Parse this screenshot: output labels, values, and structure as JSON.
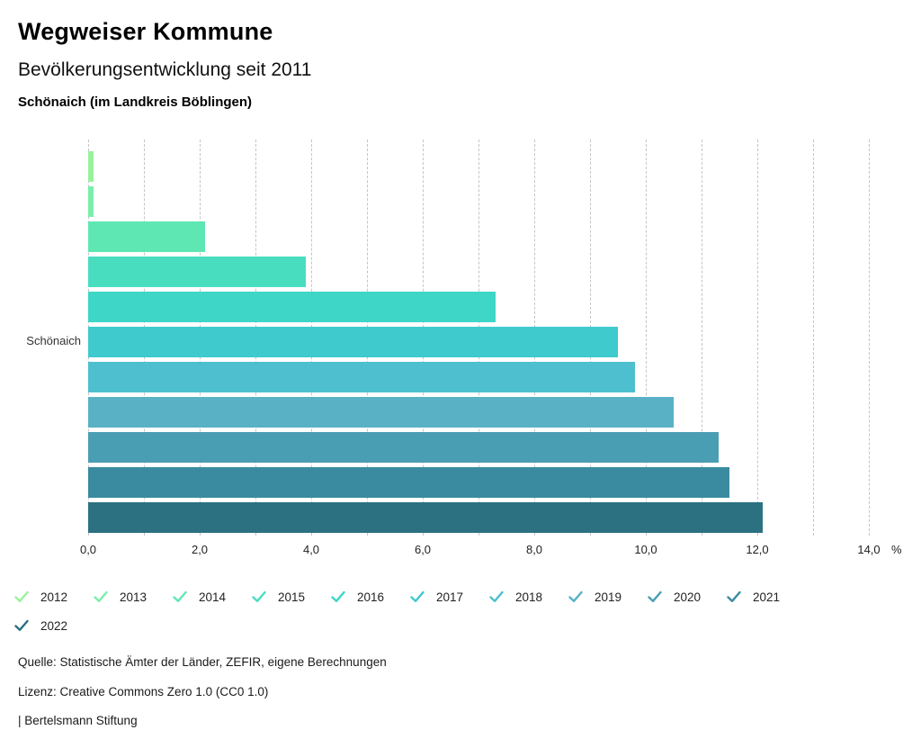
{
  "header": {
    "title": "Wegweiser Kommune",
    "subtitle": "Bevölkerungsentwicklung seit 2011",
    "location": "Schönaich (im Landkreis Böblingen)"
  },
  "chart_data": {
    "type": "bar",
    "orientation": "horizontal",
    "title": "Bevölkerungsentwicklung seit 2011",
    "region_label": "Schönaich",
    "categories": [
      "2012",
      "2013",
      "2014",
      "2015",
      "2016",
      "2017",
      "2018",
      "2019",
      "2020",
      "2021",
      "2022"
    ],
    "values": [
      0.1,
      0.1,
      2.1,
      3.9,
      7.3,
      9.5,
      9.8,
      10.5,
      11.3,
      11.5,
      12.1
    ],
    "colors": [
      "#97F39B",
      "#7BEEA9",
      "#5FE7B3",
      "#49DDC0",
      "#3ED6C6",
      "#3FCACE",
      "#4DBFCE",
      "#58B1C5",
      "#4A9EB3",
      "#3A8B9F",
      "#2B7182"
    ],
    "unit": "%",
    "x_ticks": [
      "0,0",
      "2,0",
      "4,0",
      "6,0",
      "8,0",
      "10,0",
      "12,0",
      "14,0"
    ],
    "xlim": [
      0,
      14.3
    ],
    "grid": "dashed vertical lines every 1.0",
    "legend_position": "bottom"
  },
  "legend": {
    "entries": [
      "2012",
      "2013",
      "2014",
      "2015",
      "2016",
      "2017",
      "2018",
      "2019",
      "2020",
      "2021",
      "2022"
    ]
  },
  "footer": {
    "source": "Quelle: Statistische Ämter der Länder, ZEFIR, eigene Berechnungen",
    "license": "Lizenz: Creative Commons Zero 1.0 (CC0 1.0)",
    "attribution": "| Bertelsmann Stiftung"
  }
}
